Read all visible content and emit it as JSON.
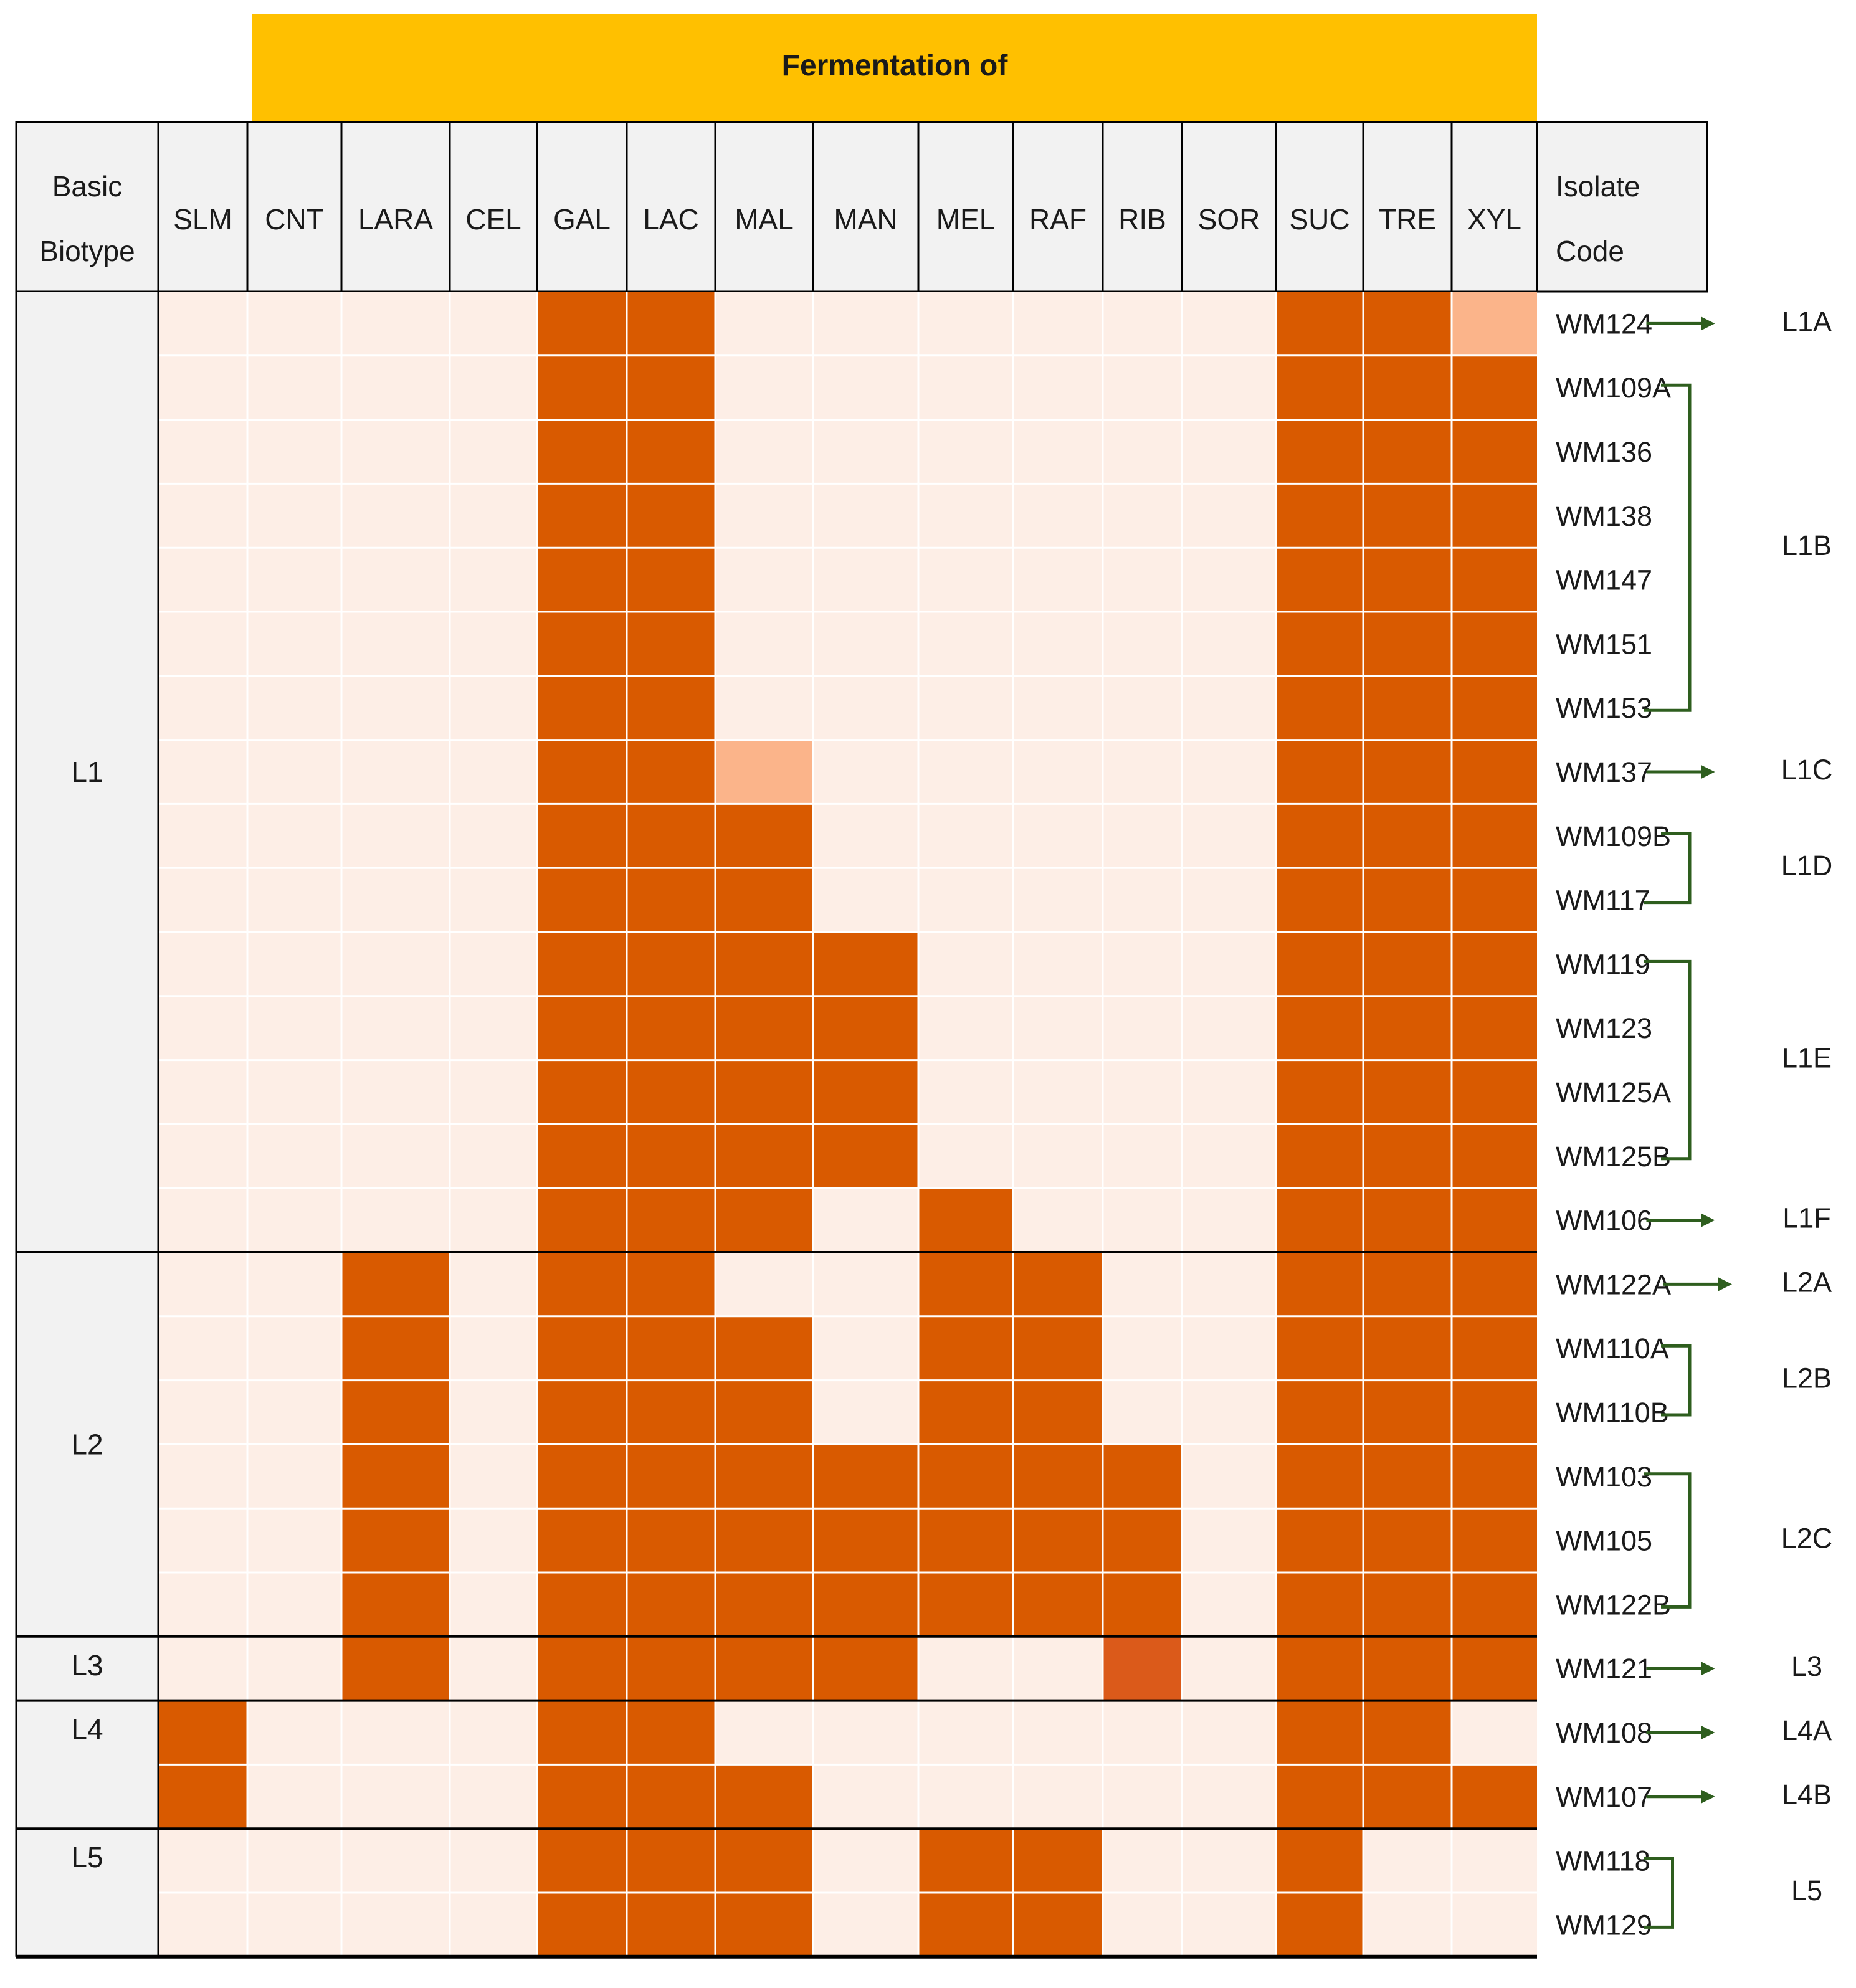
{
  "chart_data": {
    "type": "heatmap",
    "title": "Fermentation of",
    "row_header_label": "Basic Biotype",
    "code_header_label": "Isolate Code",
    "columns": [
      "SLM",
      "CNT",
      "LARA",
      "CEL",
      "GAL",
      "LAC",
      "MAL",
      "MAN",
      "MEL",
      "RAF",
      "RIB",
      "SOR",
      "SUC",
      "TRE",
      "XYL"
    ],
    "level_legend": {
      "0": "negative",
      "1": "weak",
      "2": "positive"
    },
    "colors": {
      "header_band": "#FFC000",
      "header_cells": "#F2F2F2",
      "group_cells": "#F2F2F2",
      "negative": "#FDEEE6",
      "weak": "#FBB48A",
      "positive": "#D95A00",
      "rib_l3": "#DB5A1A",
      "bracket": "#2E5E1E",
      "grid_line": "#000000"
    },
    "biotype_groups": [
      {
        "label": "L1",
        "rows": 15
      },
      {
        "label": "L2",
        "rows": 6
      },
      {
        "label": "L3",
        "rows": 1
      },
      {
        "label": "L4",
        "rows": 2
      },
      {
        "label": "L5",
        "rows": 2
      }
    ],
    "rows": [
      {
        "code": "WM124",
        "values": [
          0,
          0,
          0,
          0,
          2,
          2,
          0,
          0,
          0,
          0,
          0,
          0,
          2,
          2,
          1
        ]
      },
      {
        "code": "WM109A",
        "values": [
          0,
          0,
          0,
          0,
          2,
          2,
          0,
          0,
          0,
          0,
          0,
          0,
          2,
          2,
          2
        ]
      },
      {
        "code": "WM136",
        "values": [
          0,
          0,
          0,
          0,
          2,
          2,
          0,
          0,
          0,
          0,
          0,
          0,
          2,
          2,
          2
        ]
      },
      {
        "code": "WM138",
        "values": [
          0,
          0,
          0,
          0,
          2,
          2,
          0,
          0,
          0,
          0,
          0,
          0,
          2,
          2,
          2
        ]
      },
      {
        "code": "WM147",
        "values": [
          0,
          0,
          0,
          0,
          2,
          2,
          0,
          0,
          0,
          0,
          0,
          0,
          2,
          2,
          2
        ]
      },
      {
        "code": "WM151",
        "values": [
          0,
          0,
          0,
          0,
          2,
          2,
          0,
          0,
          0,
          0,
          0,
          0,
          2,
          2,
          2
        ]
      },
      {
        "code": "WM153",
        "values": [
          0,
          0,
          0,
          0,
          2,
          2,
          0,
          0,
          0,
          0,
          0,
          0,
          2,
          2,
          2
        ]
      },
      {
        "code": "WM137",
        "values": [
          0,
          0,
          0,
          0,
          2,
          2,
          1,
          0,
          0,
          0,
          0,
          0,
          2,
          2,
          2
        ]
      },
      {
        "code": "WM109B",
        "values": [
          0,
          0,
          0,
          0,
          2,
          2,
          2,
          0,
          0,
          0,
          0,
          0,
          2,
          2,
          2
        ]
      },
      {
        "code": "WM117",
        "values": [
          0,
          0,
          0,
          0,
          2,
          2,
          2,
          0,
          0,
          0,
          0,
          0,
          2,
          2,
          2
        ]
      },
      {
        "code": "WM119",
        "values": [
          0,
          0,
          0,
          0,
          2,
          2,
          2,
          2,
          0,
          0,
          0,
          0,
          2,
          2,
          2
        ]
      },
      {
        "code": "WM123",
        "values": [
          0,
          0,
          0,
          0,
          2,
          2,
          2,
          2,
          0,
          0,
          0,
          0,
          2,
          2,
          2
        ]
      },
      {
        "code": "WM125A",
        "values": [
          0,
          0,
          0,
          0,
          2,
          2,
          2,
          2,
          0,
          0,
          0,
          0,
          2,
          2,
          2
        ]
      },
      {
        "code": "WM125B",
        "values": [
          0,
          0,
          0,
          0,
          2,
          2,
          2,
          2,
          0,
          0,
          0,
          0,
          2,
          2,
          2
        ]
      },
      {
        "code": "WM106",
        "values": [
          0,
          0,
          0,
          0,
          2,
          2,
          2,
          0,
          2,
          0,
          0,
          0,
          2,
          2,
          2
        ]
      },
      {
        "code": "WM122A",
        "values": [
          0,
          0,
          2,
          0,
          2,
          2,
          0,
          0,
          2,
          2,
          0,
          0,
          2,
          2,
          2
        ]
      },
      {
        "code": "WM110A",
        "values": [
          0,
          0,
          2,
          0,
          2,
          2,
          2,
          0,
          2,
          2,
          0,
          0,
          2,
          2,
          2
        ]
      },
      {
        "code": "WM110B",
        "values": [
          0,
          0,
          2,
          0,
          2,
          2,
          2,
          0,
          2,
          2,
          0,
          0,
          2,
          2,
          2
        ]
      },
      {
        "code": "WM103",
        "values": [
          0,
          0,
          2,
          0,
          2,
          2,
          2,
          2,
          2,
          2,
          2,
          0,
          2,
          2,
          2
        ]
      },
      {
        "code": "WM105",
        "values": [
          0,
          0,
          2,
          0,
          2,
          2,
          2,
          2,
          2,
          2,
          2,
          0,
          2,
          2,
          2
        ]
      },
      {
        "code": "WM122B",
        "values": [
          0,
          0,
          2,
          0,
          2,
          2,
          2,
          2,
          2,
          2,
          2,
          0,
          2,
          2,
          2
        ]
      },
      {
        "code": "WM121",
        "values": [
          0,
          0,
          2,
          0,
          2,
          2,
          2,
          2,
          0,
          0,
          2,
          0,
          2,
          2,
          2
        ]
      },
      {
        "code": "WM108",
        "values": [
          2,
          0,
          0,
          0,
          2,
          2,
          0,
          0,
          0,
          0,
          0,
          0,
          2,
          2,
          0
        ]
      },
      {
        "code": "WM107",
        "values": [
          2,
          0,
          0,
          0,
          2,
          2,
          2,
          0,
          0,
          0,
          0,
          0,
          2,
          2,
          2
        ]
      },
      {
        "code": "WM118",
        "values": [
          0,
          0,
          0,
          0,
          2,
          2,
          2,
          0,
          2,
          2,
          0,
          0,
          2,
          0,
          0
        ]
      },
      {
        "code": "WM129",
        "values": [
          0,
          0,
          0,
          0,
          2,
          2,
          2,
          0,
          2,
          2,
          0,
          0,
          2,
          0,
          0
        ]
      }
    ],
    "subgroups": [
      {
        "label": "L1A",
        "kind": "arrow",
        "rows": [
          0
        ]
      },
      {
        "label": "L1B",
        "kind": "bracket",
        "rows": [
          1,
          6
        ]
      },
      {
        "label": "L1C",
        "kind": "arrow",
        "rows": [
          7
        ]
      },
      {
        "label": "L1D",
        "kind": "bracket",
        "rows": [
          8,
          9
        ]
      },
      {
        "label": "L1E",
        "kind": "bracket",
        "rows": [
          10,
          13
        ]
      },
      {
        "label": "L1F",
        "kind": "arrow",
        "rows": [
          14
        ]
      },
      {
        "label": "L2A",
        "kind": "arrow",
        "rows": [
          15
        ]
      },
      {
        "label": "L2B",
        "kind": "bracket",
        "rows": [
          16,
          17
        ]
      },
      {
        "label": "L2C",
        "kind": "bracket",
        "rows": [
          18,
          20
        ]
      },
      {
        "label": "L3",
        "kind": "arrow",
        "rows": [
          21
        ]
      },
      {
        "label": "L4A",
        "kind": "arrow",
        "rows": [
          22
        ]
      },
      {
        "label": "L4B",
        "kind": "arrow",
        "rows": [
          23
        ]
      },
      {
        "label": "L5",
        "kind": "bracket",
        "rows": [
          24,
          25
        ]
      }
    ]
  }
}
